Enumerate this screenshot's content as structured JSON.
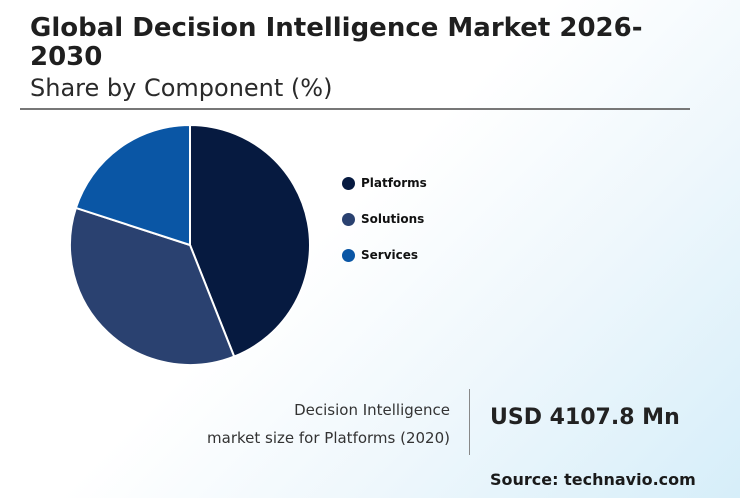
{
  "header": {
    "title": "Global Decision Intelligence Market 2026-2030",
    "subtitle": "Share by Component (%)"
  },
  "chart_data": {
    "type": "pie",
    "categories": [
      "Platforms",
      "Solutions",
      "Services"
    ],
    "values": [
      44,
      36,
      20
    ],
    "colors": [
      "#061a40",
      "#2a4170",
      "#0a56a5"
    ],
    "legend_position": "right"
  },
  "stat": {
    "caption_line1": "Decision Intelligence",
    "caption_line2": "market size for Platforms (2020)",
    "value": "USD 4107.8 Mn"
  },
  "source": "Source: technavio.com"
}
